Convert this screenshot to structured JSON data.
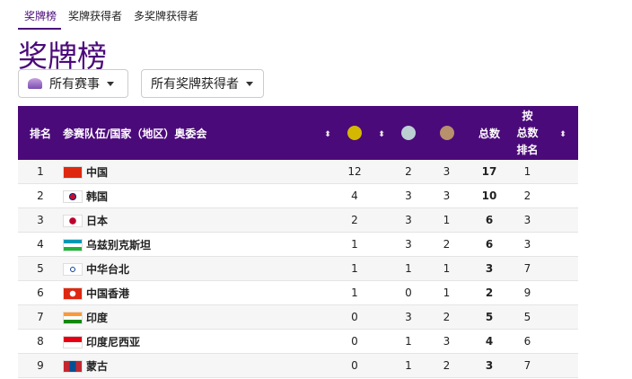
{
  "tabs": [
    "奖牌榜",
    "奖牌获得者",
    "多奖牌获得者"
  ],
  "title": "奖牌榜",
  "filters": {
    "event": "所有赛事",
    "winners": "所有奖牌获得者"
  },
  "table": {
    "headers": {
      "rank": "排名",
      "team": "参赛队伍/国家（地区）奥委会",
      "total": "总数",
      "rank_total": "按\n总数\n排名"
    },
    "medal_colors": {
      "gold": "#d4b800",
      "silver": "#bcd0d4",
      "bronze": "#b8906c"
    },
    "rows": [
      {
        "rank": "1",
        "name": "中国",
        "gold": "12",
        "silver": "2",
        "bronze": "3",
        "total": "17",
        "rank_total": "1"
      },
      {
        "rank": "2",
        "name": "韩国",
        "gold": "4",
        "silver": "3",
        "bronze": "3",
        "total": "10",
        "rank_total": "2"
      },
      {
        "rank": "3",
        "name": "日本",
        "gold": "2",
        "silver": "3",
        "bronze": "1",
        "total": "6",
        "rank_total": "3"
      },
      {
        "rank": "4",
        "name": "乌兹别克斯坦",
        "gold": "1",
        "silver": "3",
        "bronze": "2",
        "total": "6",
        "rank_total": "3"
      },
      {
        "rank": "5",
        "name": "中华台北",
        "gold": "1",
        "silver": "1",
        "bronze": "1",
        "total": "3",
        "rank_total": "7"
      },
      {
        "rank": "6",
        "name": "中国香港",
        "gold": "1",
        "silver": "0",
        "bronze": "1",
        "total": "2",
        "rank_total": "9"
      },
      {
        "rank": "7",
        "name": "印度",
        "gold": "0",
        "silver": "3",
        "bronze": "2",
        "total": "5",
        "rank_total": "5"
      },
      {
        "rank": "8",
        "name": "印度尼西亚",
        "gold": "0",
        "silver": "1",
        "bronze": "3",
        "total": "4",
        "rank_total": "6"
      },
      {
        "rank": "9",
        "name": "蒙古",
        "gold": "0",
        "silver": "1",
        "bronze": "2",
        "total": "3",
        "rank_total": "7"
      }
    ]
  }
}
